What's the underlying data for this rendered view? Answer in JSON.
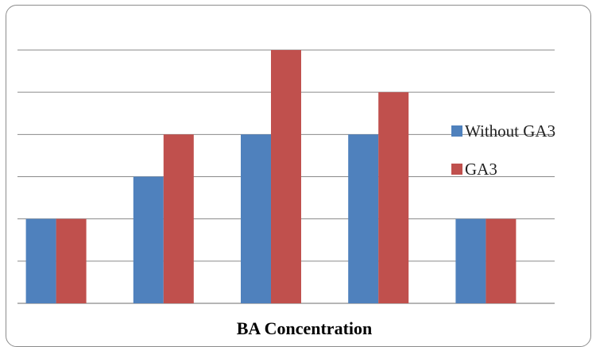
{
  "chart_data": {
    "type": "bar",
    "categories": [
      "",
      "",
      "",
      "",
      ""
    ],
    "series": [
      {
        "name": "Without GA3",
        "color": "#4f81bd",
        "values": [
          2,
          3,
          4,
          4,
          2
        ]
      },
      {
        "name": "GA3",
        "color": "#c0504d",
        "values": [
          2,
          4,
          6,
          5,
          2
        ]
      }
    ],
    "xlabel": "BA Concentration",
    "ylabel": "",
    "ylim": [
      0,
      6
    ],
    "grid": true,
    "legend_position": "right"
  }
}
